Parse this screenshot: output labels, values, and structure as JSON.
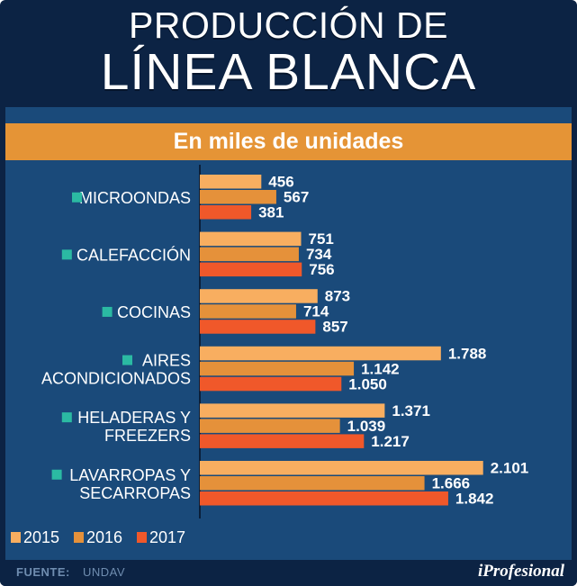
{
  "header": {
    "title_line1": "PRODUCCIÓN DE",
    "title_line2": "LÍNEA BLANCA"
  },
  "colors": {
    "background": "#0c2344",
    "panel": "#1a4a7a",
    "accent_bar": "#e59436",
    "category_marker": "#2bbaa3",
    "series_2015": "#f8ae60",
    "series_2016": "#e5913a",
    "series_2017": "#f0582a"
  },
  "chart_data": {
    "type": "bar",
    "orientation": "horizontal",
    "title": "PRODUCCIÓN DE LÍNEA BLANCA",
    "subtitle": "En miles de unidades",
    "categories": [
      [
        "MICROONDAS"
      ],
      [
        "CALEFACCIÓN"
      ],
      [
        "COCINAS"
      ],
      [
        "AIRES",
        "ACONDICIONADOS"
      ],
      [
        "HELADERAS Y",
        "FREEZERS"
      ],
      [
        "LAVARROPAS Y",
        "SECARROPAS"
      ]
    ],
    "series": [
      {
        "name": "2015",
        "values": [
          456,
          751,
          873,
          1788,
          1371,
          2101
        ],
        "labels": [
          "456",
          "751",
          "873",
          "1.788",
          "1.371",
          "2.101"
        ]
      },
      {
        "name": "2016",
        "values": [
          567,
          734,
          714,
          1142,
          1039,
          1666
        ],
        "labels": [
          "567",
          "734",
          "714",
          "1.142",
          "1.039",
          "1.666"
        ]
      },
      {
        "name": "2017",
        "values": [
          381,
          756,
          857,
          1050,
          1217,
          1842
        ],
        "labels": [
          "381",
          "756",
          "857",
          "1.050",
          "1.217",
          "1.842"
        ]
      }
    ],
    "xlim": [
      0,
      2200
    ],
    "grid": false,
    "legend": "bottom-left",
    "xlabel": "",
    "ylabel": ""
  },
  "footer": {
    "source_label": "FUENTE:",
    "source_value": "UNDAV",
    "brand": "iProfesional"
  }
}
